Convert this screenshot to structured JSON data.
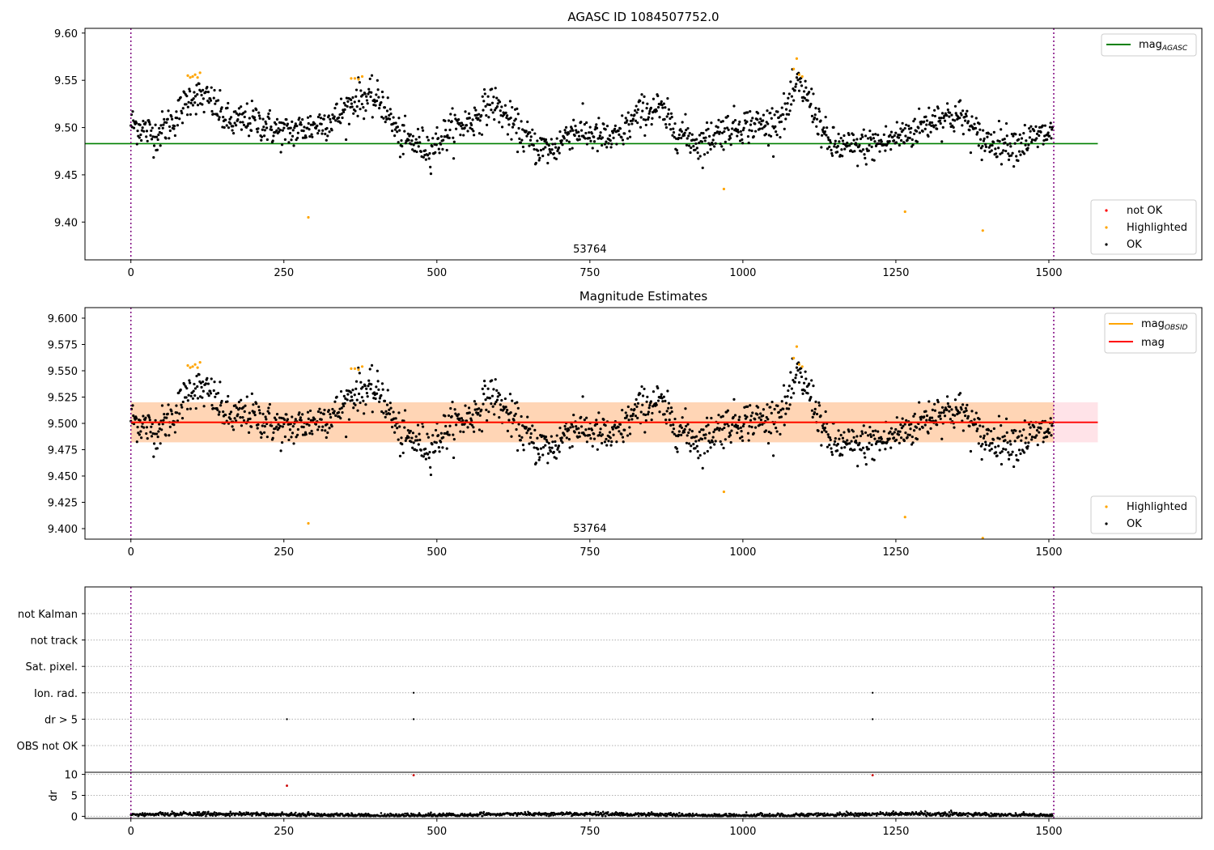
{
  "chart_data": [
    {
      "type": "scatter",
      "title": "AGASC ID 1084507752.0",
      "xlim": [
        -75,
        1750
      ],
      "ylim": [
        9.36,
        9.605
      ],
      "x_ticks": [
        "0",
        "250",
        "500",
        "750",
        "1000",
        "1250",
        "1500"
      ],
      "x_tick_values": [
        0,
        250,
        500,
        750,
        1000,
        1250,
        1500
      ],
      "y_ticks": [
        "9.40",
        "9.45",
        "9.50",
        "9.55",
        "9.60"
      ],
      "y_tick_values": [
        9.4,
        9.45,
        9.5,
        9.55,
        9.6
      ],
      "obsid_label": "53764",
      "obsid_x": 750,
      "obs_boundaries": [
        0,
        1508
      ],
      "reference_line": {
        "name": "mag_AGASC",
        "label_main": "mag",
        "label_sub": "AGASC",
        "y": 9.483,
        "x_range": [
          -75,
          1580
        ],
        "color": "#008000"
      },
      "legend_upper": "top-right",
      "legend_lower": "bottom-right",
      "legend_entries": [
        {
          "label": "not OK",
          "color": "#ff0000"
        },
        {
          "label": "Highlighted",
          "color": "#ffa500"
        },
        {
          "label": "OK",
          "color": "#000000"
        }
      ],
      "highlighted_points": [
        [
          93,
          9.555
        ],
        [
          97,
          9.553
        ],
        [
          101,
          9.554
        ],
        [
          105,
          9.556
        ],
        [
          109,
          9.553
        ],
        [
          113,
          9.558
        ],
        [
          290,
          9.405
        ],
        [
          360,
          9.552
        ],
        [
          366,
          9.552
        ],
        [
          372,
          9.551
        ],
        [
          378,
          9.554
        ],
        [
          969,
          9.435
        ],
        [
          1083,
          9.562
        ],
        [
          1088,
          9.573
        ],
        [
          1092,
          9.556
        ],
        [
          1097,
          9.554
        ],
        [
          1265,
          9.411
        ],
        [
          1392,
          9.391
        ]
      ],
      "trend_knots": [
        [
          0,
          9.505
        ],
        [
          40,
          9.492
        ],
        [
          70,
          9.508
        ],
        [
          100,
          9.535
        ],
        [
          130,
          9.528
        ],
        [
          160,
          9.505
        ],
        [
          200,
          9.508
        ],
        [
          250,
          9.494
        ],
        [
          300,
          9.502
        ],
        [
          340,
          9.512
        ],
        [
          370,
          9.532
        ],
        [
          410,
          9.528
        ],
        [
          440,
          9.488
        ],
        [
          490,
          9.478
        ],
        [
          520,
          9.497
        ],
        [
          560,
          9.508
        ],
        [
          590,
          9.528
        ],
        [
          620,
          9.506
        ],
        [
          660,
          9.48
        ],
        [
          690,
          9.476
        ],
        [
          720,
          9.498
        ],
        [
          790,
          9.486
        ],
        [
          830,
          9.514
        ],
        [
          860,
          9.521
        ],
        [
          890,
          9.498
        ],
        [
          930,
          9.482
        ],
        [
          960,
          9.496
        ],
        [
          1000,
          9.503
        ],
        [
          1040,
          9.503
        ],
        [
          1070,
          9.515
        ],
        [
          1090,
          9.546
        ],
        [
          1110,
          9.528
        ],
        [
          1140,
          9.482
        ],
        [
          1180,
          9.478
        ],
        [
          1230,
          9.484
        ],
        [
          1280,
          9.497
        ],
        [
          1320,
          9.512
        ],
        [
          1360,
          9.511
        ],
        [
          1390,
          9.486
        ],
        [
          1450,
          9.483
        ],
        [
          1500,
          9.494
        ]
      ],
      "n_ok_points": 1500,
      "ok_scatter": 0.011
    },
    {
      "type": "scatter",
      "title": "Magnitude Estimates",
      "xlim": [
        -75,
        1750
      ],
      "ylim": [
        9.39,
        9.61
      ],
      "x_ticks": [
        "0",
        "250",
        "500",
        "750",
        "1000",
        "1250",
        "1500"
      ],
      "x_tick_values": [
        0,
        250,
        500,
        750,
        1000,
        1250,
        1500
      ],
      "y_ticks": [
        "9.400",
        "9.425",
        "9.450",
        "9.475",
        "9.500",
        "9.525",
        "9.550",
        "9.575",
        "9.600"
      ],
      "y_tick_values": [
        9.4,
        9.425,
        9.45,
        9.475,
        9.5,
        9.525,
        9.55,
        9.575,
        9.6
      ],
      "obsid_label": "53764",
      "obsid_x": 750,
      "mag_line": {
        "label": "mag",
        "y": 9.501,
        "x_range": [
          0,
          1580
        ],
        "color": "#ff0000"
      },
      "mag_band": {
        "y_low": 9.482,
        "y_high": 9.52,
        "x_range": [
          0,
          1580
        ],
        "color": "#ffc0cb"
      },
      "obsid_line": {
        "label_main": "mag",
        "label_sub": "OBSID",
        "y": 9.501,
        "x_range": [
          0,
          1508
        ],
        "color": "#ffa500"
      },
      "obsid_band": {
        "y_low": 9.482,
        "y_high": 9.52,
        "color": "#ffa500"
      },
      "legend_upper": "top-right",
      "legend_lower": "bottom-right",
      "legend_entries": [
        {
          "label": "Highlighted",
          "color": "#ffa500"
        },
        {
          "label": "OK",
          "color": "#000000"
        }
      ]
    },
    {
      "type": "scatter",
      "title": "",
      "xlim": [
        -75,
        1750
      ],
      "flag_rows": [
        "not Kalman",
        "not track",
        "Sat. pixel.",
        "Ion. rad.",
        "dr > 5",
        "OBS not OK"
      ],
      "flag_points": [
        {
          "row": "Ion. rad.",
          "x": 462
        },
        {
          "row": "Ion. rad.",
          "x": 1212
        },
        {
          "row": "dr > 5",
          "x": 255
        },
        {
          "row": "dr > 5",
          "x": 462
        },
        {
          "row": "dr > 5",
          "x": 1212
        }
      ]
    },
    {
      "type": "scatter",
      "title": "",
      "xlim": [
        -75,
        1750
      ],
      "ylim": [
        -0.5,
        10.5
      ],
      "ylabel": "dr",
      "x_ticks": [
        "0",
        "250",
        "500",
        "750",
        "1000",
        "1250",
        "1500"
      ],
      "x_tick_values": [
        0,
        250,
        500,
        750,
        1000,
        1250,
        1500
      ],
      "y_ticks": [
        "0",
        "5",
        "10"
      ],
      "y_tick_values": [
        0,
        5,
        10
      ],
      "dr_outliers": [
        [
          255,
          7.3
        ],
        [
          462,
          9.8
        ],
        [
          1212,
          9.8
        ],
        [
          290,
          1.0
        ]
      ],
      "dr_baseline": 0.4
    }
  ]
}
